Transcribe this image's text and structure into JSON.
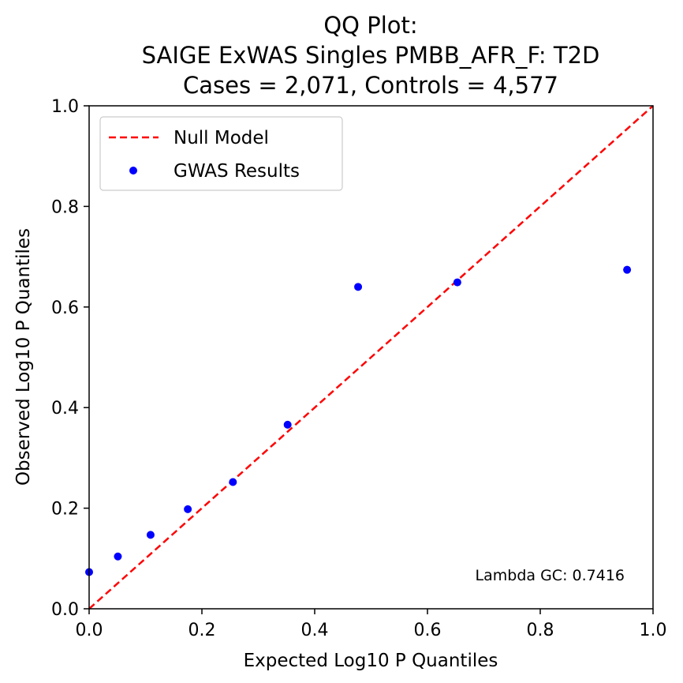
{
  "chart_data": {
    "type": "scatter",
    "title_lines": [
      "QQ Plot:",
      "SAIGE ExWAS Singles PMBB_AFR_F: T2D",
      "Cases = 2,071, Controls = 4,577"
    ],
    "xlabel": "Expected Log10 P Quantiles",
    "ylabel": "Observed Log10 P Quantiles",
    "xlim": [
      0,
      1.0
    ],
    "ylim": [
      0,
      1.0
    ],
    "xticks": [
      "0.0",
      "0.2",
      "0.4",
      "0.6",
      "0.8",
      "1.0"
    ],
    "yticks": [
      "0.0",
      "0.2",
      "0.4",
      "0.6",
      "0.8",
      "1.0"
    ],
    "grid": false,
    "legend_position": "top-left",
    "series": [
      {
        "name": "GWAS Results",
        "kind": "scatter",
        "color": "#0000ff",
        "x": [
          0.0,
          0.051,
          0.109,
          0.175,
          0.255,
          0.352,
          0.477,
          0.653,
          0.954
        ],
        "y": [
          0.073,
          0.104,
          0.147,
          0.198,
          0.252,
          0.366,
          0.64,
          0.649,
          0.674
        ]
      }
    ],
    "null_model": {
      "name": "Null Model",
      "color": "#ff0000",
      "style": "dashed",
      "x": [
        0,
        1.0
      ],
      "y": [
        0,
        1.0
      ]
    },
    "annotation": "Lambda GC: 0.7416"
  }
}
